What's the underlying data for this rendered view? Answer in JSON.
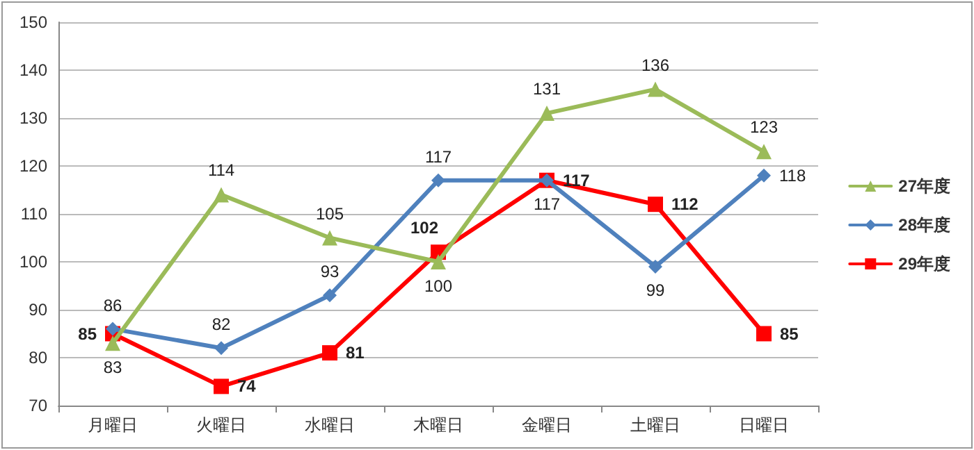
{
  "chart_data": {
    "type": "line",
    "categories": [
      "月曜日",
      "火曜日",
      "水曜日",
      "木曜日",
      "金曜日",
      "土曜日",
      "日曜日"
    ],
    "series": [
      {
        "name": "27年度",
        "color": "#9bbb59",
        "marker": "triangle",
        "values": [
          83,
          114,
          105,
          100,
          131,
          136,
          123
        ]
      },
      {
        "name": "28年度",
        "color": "#4f81bd",
        "marker": "diamond",
        "values": [
          86,
          82,
          93,
          117,
          117,
          99,
          118
        ]
      },
      {
        "name": "29年度",
        "color": "#ff0000",
        "marker": "square",
        "values": [
          85,
          74,
          81,
          102,
          117,
          112,
          85
        ]
      }
    ],
    "ylim": [
      70,
      150
    ],
    "yticks": [
      70,
      80,
      90,
      100,
      110,
      120,
      130,
      140,
      150
    ],
    "grid": "y",
    "legend": "right",
    "data_labels": true,
    "line_style": "solid"
  }
}
